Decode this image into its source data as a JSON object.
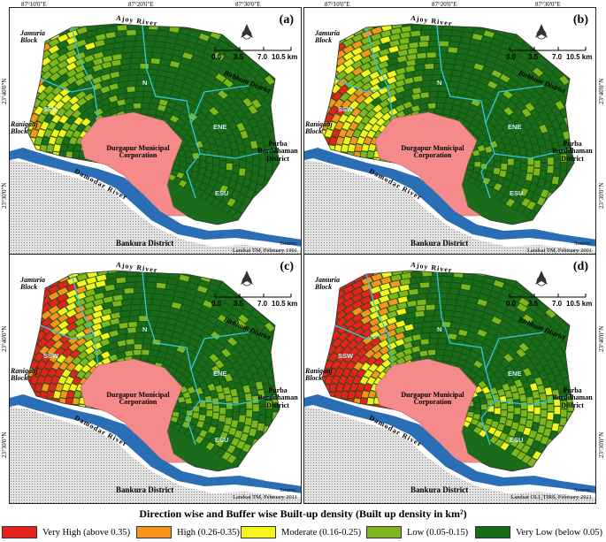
{
  "legend": {
    "title": "Direction wise and Buffer wise Built-up density (Built up density in km²)",
    "items": [
      {
        "label": "Very High (above 0.35)",
        "color": "#e8211f"
      },
      {
        "label": "High (0.26-0.35)",
        "color": "#f7941d"
      },
      {
        "label": "Moderate (0.16-0.25)",
        "color": "#f5f51d"
      },
      {
        "label": "Low (0.05-0.15)",
        "color": "#7fb51d"
      },
      {
        "label": "Very Low (below 0.05)",
        "color": "#1a6b1a"
      }
    ]
  },
  "colors": {
    "municipal": "#f48a8a",
    "river": "#2a6fb5",
    "boundary": "#34c6e0"
  },
  "map_labels": {
    "jamuria": "Jamuria Block",
    "raniganj": "Raniganj Block",
    "ajoy": "Ajoy River",
    "birbhum": "Birbhum District",
    "durgapur": "Durgapur Municipal Corporation",
    "purba": "Purba Barddhaman District",
    "damodar": "Damodar River",
    "bankura": "Bankura District",
    "ssw": "SSW",
    "n": "N",
    "ene": "ENE",
    "esu": "ESU"
  },
  "coords": {
    "top_x1": "87°10'0\"E",
    "top_x2": "87°20'0\"E",
    "top_x3": "87°30'0\"E",
    "y1": "23°40'0\"N",
    "y2": "23°30'0\"N"
  },
  "scale": {
    "t0": "0.0",
    "t1": "3.5",
    "t2": "7.0",
    "t3": "10.5 km"
  },
  "panels": [
    {
      "label": "(a)",
      "source_1": "Source:",
      "source_2": "Landsat TM, February 1991",
      "level": 0
    },
    {
      "label": "(b)",
      "source_1": "Source:",
      "source_2": "Landsat TM, February 2001",
      "level": 1
    },
    {
      "label": "(c)",
      "source_1": "Source:",
      "source_2": "Landsat TM, February 2011",
      "level": 2
    },
    {
      "label": "(d)",
      "source_1": "Source:",
      "source_2": "Landsat OLI_TIRS, February 2021",
      "level": 3
    }
  ]
}
